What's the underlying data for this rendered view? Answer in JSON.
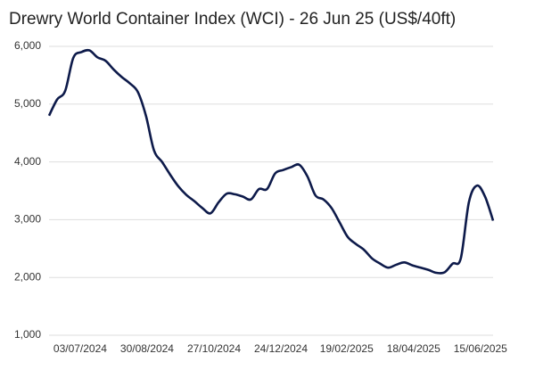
{
  "chart_data": {
    "type": "line",
    "title": "Drewry World Container Index (WCI) - 26 Jun 25 (US$/40ft)",
    "x": [
      "06/06/2024",
      "13/06/2024",
      "20/06/2024",
      "27/06/2024",
      "04/07/2024",
      "11/07/2024",
      "18/07/2024",
      "25/07/2024",
      "01/08/2024",
      "08/08/2024",
      "15/08/2024",
      "22/08/2024",
      "29/08/2024",
      "05/09/2024",
      "12/09/2024",
      "19/09/2024",
      "26/09/2024",
      "03/10/2024",
      "10/10/2024",
      "17/10/2024",
      "24/10/2024",
      "31/10/2024",
      "07/11/2024",
      "14/11/2024",
      "21/11/2024",
      "28/11/2024",
      "05/12/2024",
      "12/12/2024",
      "19/12/2024",
      "26/12/2024",
      "02/01/2025",
      "09/01/2025",
      "16/01/2025",
      "23/01/2025",
      "30/01/2025",
      "06/02/2025",
      "13/02/2025",
      "20/02/2025",
      "27/02/2025",
      "06/03/2025",
      "13/03/2025",
      "20/03/2025",
      "27/03/2025",
      "03/04/2025",
      "10/04/2025",
      "17/04/2025",
      "24/04/2025",
      "01/05/2025",
      "08/05/2025",
      "15/05/2025",
      "22/05/2025",
      "29/05/2025",
      "05/06/2025",
      "12/06/2025",
      "19/06/2025",
      "26/06/2025"
    ],
    "series": [
      {
        "name": "WCI",
        "color": "#0d1a4a",
        "values": [
          4800,
          5080,
          5230,
          5800,
          5900,
          5930,
          5810,
          5750,
          5600,
          5470,
          5360,
          5210,
          4800,
          4200,
          4000,
          3780,
          3580,
          3430,
          3320,
          3200,
          3110,
          3300,
          3450,
          3440,
          3400,
          3350,
          3530,
          3530,
          3800,
          3860,
          3910,
          3950,
          3750,
          3420,
          3350,
          3200,
          2950,
          2700,
          2580,
          2480,
          2330,
          2240,
          2170,
          2220,
          2260,
          2210,
          2170,
          2130,
          2080,
          2090,
          2240,
          2330,
          3300,
          3590,
          3400,
          2983
        ]
      }
    ],
    "xlim": [
      "06/06/2024",
      "26/06/2025"
    ],
    "xticks": [
      "03/07/2024",
      "30/08/2024",
      "27/10/2024",
      "24/12/2024",
      "19/02/2025",
      "18/04/2025",
      "15/06/2025"
    ],
    "ylim": [
      1000,
      6000
    ],
    "yticks": [
      {
        "value": 1000,
        "label": "1,000"
      },
      {
        "value": 2000,
        "label": "2,000"
      },
      {
        "value": 3000,
        "label": "3,000"
      },
      {
        "value": 4000,
        "label": "4,000"
      },
      {
        "value": 5000,
        "label": "5,000"
      },
      {
        "value": 6000,
        "label": "6,000"
      }
    ],
    "grid": true
  }
}
